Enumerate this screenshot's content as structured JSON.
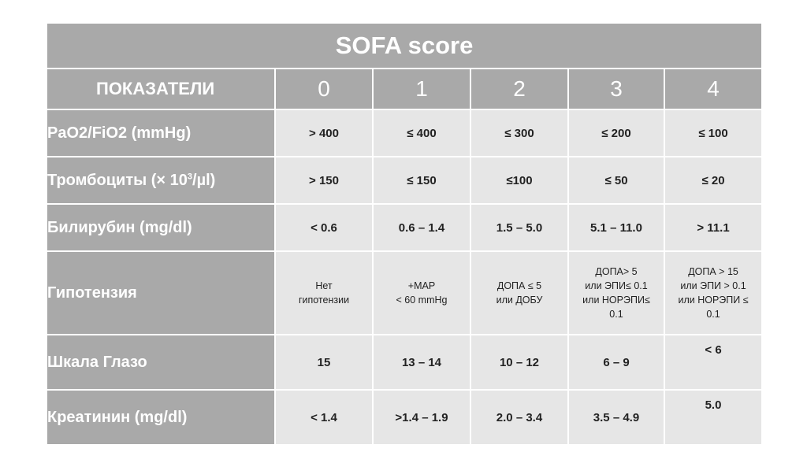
{
  "title": "SOFA score",
  "header": {
    "label": "ПОКАЗАТЕЛИ",
    "scores": [
      "0",
      "1",
      "2",
      "3",
      "4"
    ]
  },
  "rows": [
    {
      "label": "PaO2/FiO2 (mmHg)",
      "values": [
        "> 400",
        "≤ 400",
        "≤ 300",
        "≤ 200",
        "≤ 100"
      ]
    },
    {
      "label_pre": "Тромбоциты (× 10",
      "label_sup": "3",
      "label_post": "/µl)",
      "values": [
        "> 150",
        "≤ 150",
        "≤100",
        "≤ 50",
        "≤ 20"
      ]
    },
    {
      "label": "Билирубин (mg/dl)",
      "values": [
        "< 0.6",
        "0.6 – 1.4",
        "1.5 – 5.0",
        "5.1 – 11.0",
        "> 11.1"
      ]
    },
    {
      "label": "Гипотензия",
      "values": [
        "Нет\nгипотензии",
        "+MAP\n< 60 mmHg",
        "ДОПА ≤ 5\nили ДОБУ",
        "ДОПА> 5\nили ЭПИ≤ 0.1\nили НОРЭПИ≤\n0.1",
        "ДОПА > 15\nили ЭПИ > 0.1\nили НОРЭПИ ≤\n0.1"
      ]
    },
    {
      "label": "Шкала Глазо",
      "values": [
        "15",
        "13 – 14",
        "10 – 12",
        "6 – 9",
        "< 6"
      ]
    },
    {
      "label": "Креатинин (mg/dl)",
      "values": [
        "< 1.4",
        ">1.4 – 1.9",
        "2.0 – 3.4",
        "3.5 – 4.9",
        "5.0"
      ]
    }
  ]
}
